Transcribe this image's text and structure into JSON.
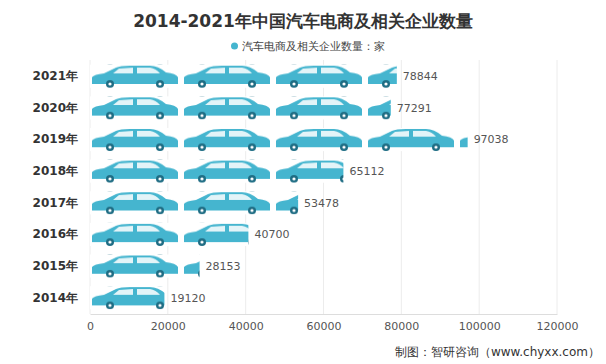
{
  "chart_data": {
    "type": "bar",
    "orientation": "horizontal",
    "title": "2014-2021年中国汽车电商及相关企业数量",
    "annotations": [
      "制图：智研咨询（www.chyxx.com）"
    ],
    "categories": [
      "2014年",
      "2015年",
      "2016年",
      "2017年",
      "2018年",
      "2019年",
      "2020年",
      "2021年"
    ],
    "series": [
      {
        "name": "汽车电商及相关企业数量：家",
        "color": "#45b5cf",
        "values": [
          19120,
          28153,
          40700,
          53478,
          65112,
          97038,
          77291,
          78844
        ]
      }
    ],
    "xlim": [
      0,
      120000
    ],
    "xticks": [
      0,
      20000,
      40000,
      60000,
      80000,
      100000,
      120000
    ],
    "grid": true,
    "legend": "top",
    "data_labels": true
  }
}
